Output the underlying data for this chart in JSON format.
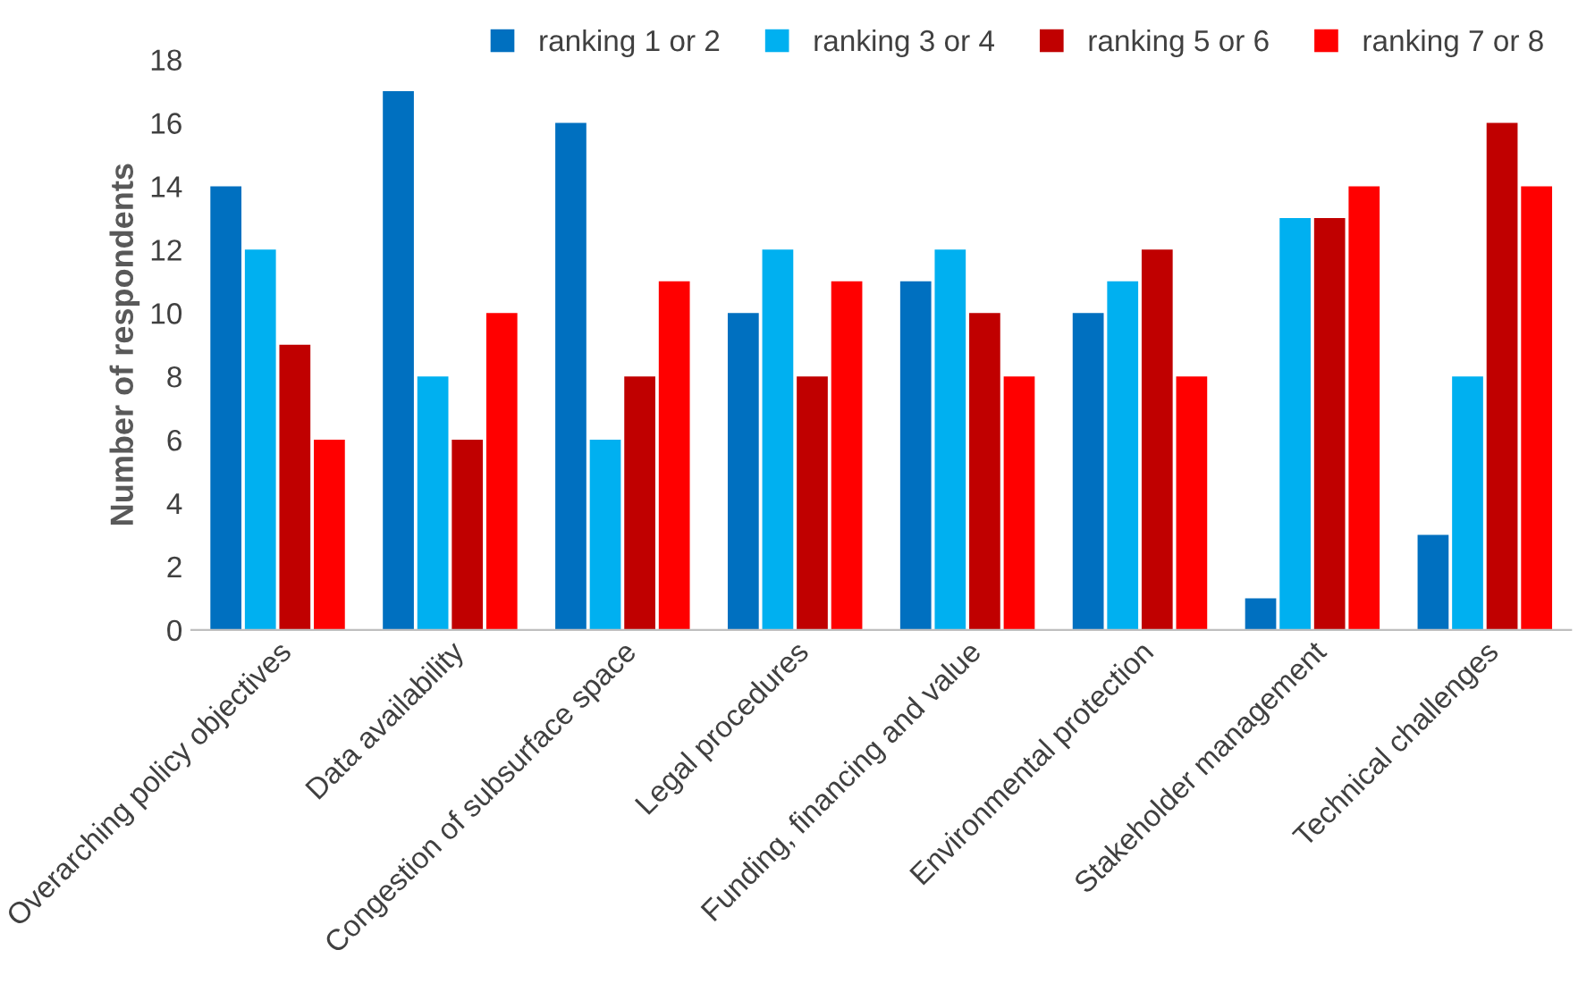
{
  "chart_data": {
    "type": "bar",
    "ylabel": "Number of respondents",
    "categories": [
      "Overarching policy objectives",
      "Data availability",
      "Congestion of subsurface space",
      "Legal procedures",
      "Funding, financing and value",
      "Environmental protection",
      "Stakeholder management",
      "Technical challenges"
    ],
    "series": [
      {
        "name": "ranking 1 or 2",
        "color": "#0070c0",
        "values": [
          14,
          17,
          16,
          10,
          11,
          10,
          1,
          3
        ]
      },
      {
        "name": "ranking 3 or 4",
        "color": "#00b0f0",
        "values": [
          12,
          8,
          6,
          12,
          12,
          11,
          13,
          8
        ]
      },
      {
        "name": "ranking 5 or 6",
        "color": "#c00000",
        "values": [
          9,
          6,
          8,
          8,
          10,
          12,
          13,
          16
        ]
      },
      {
        "name": "ranking 7 or 8",
        "color": "#ff0000",
        "values": [
          6,
          10,
          11,
          11,
          8,
          8,
          14,
          14
        ]
      }
    ],
    "ylim": [
      0,
      18
    ],
    "yticks": [
      0,
      2,
      4,
      6,
      8,
      10,
      12,
      14,
      16,
      18
    ],
    "grid": false,
    "legend": "top right"
  }
}
